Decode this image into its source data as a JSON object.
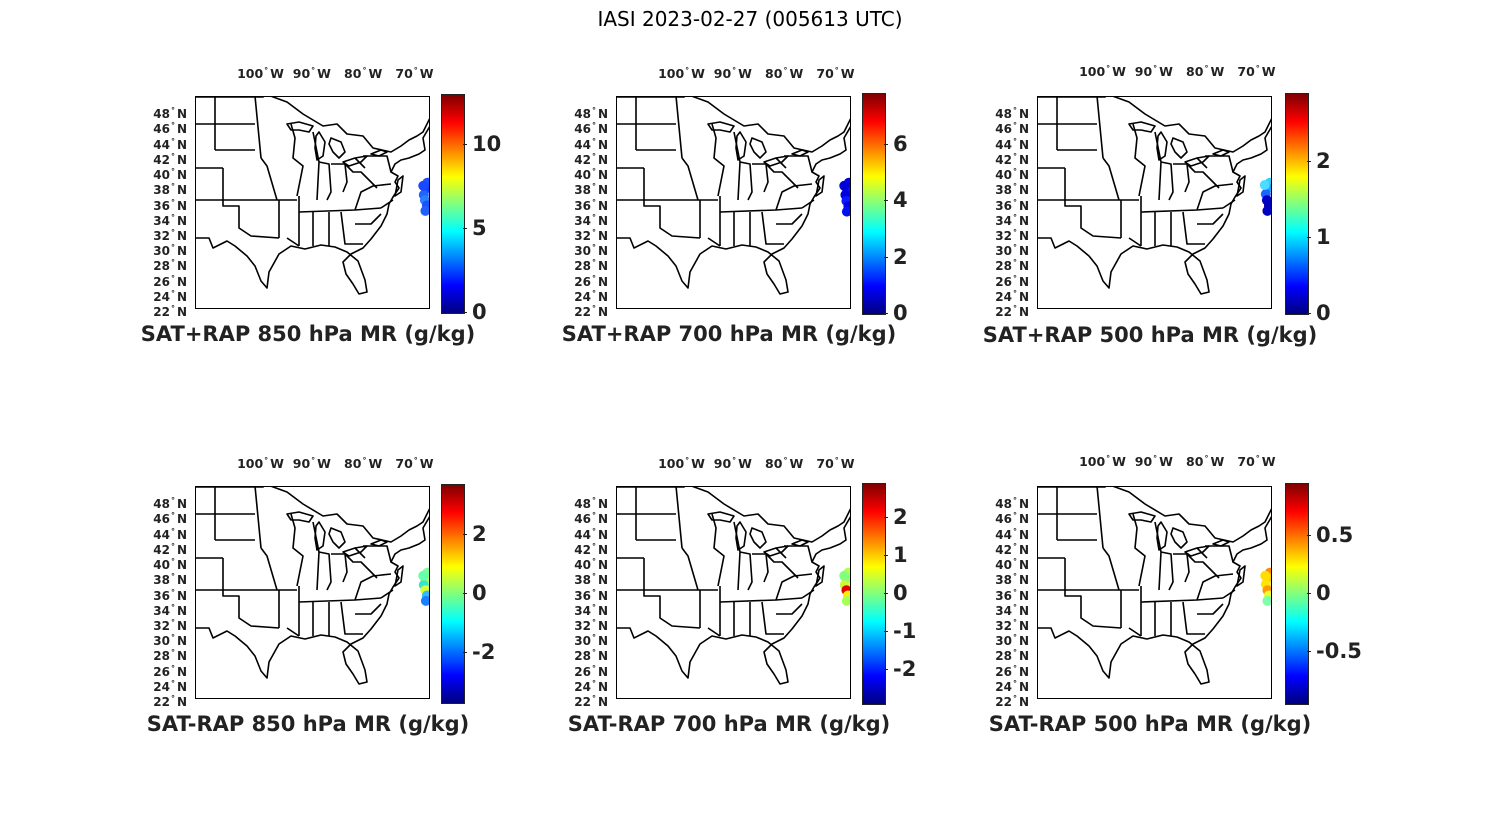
{
  "figure": {
    "title": "IASI 2023-02-27 (005613 UTC)"
  },
  "lon_ticks": [
    "100",
    "90",
    "80",
    "70"
  ],
  "lon_suffix": "W",
  "lat_ticks": [
    "48",
    "46",
    "44",
    "42",
    "40",
    "38",
    "36",
    "34",
    "32",
    "30",
    "28",
    "26",
    "24",
    "22"
  ],
  "lat_suffix": "N",
  "colormap": "jet",
  "panels": [
    {
      "title": "SAT+RAP 850 hPa MR (g/kg)",
      "colorbar": {
        "min": 0,
        "max": 13,
        "ticks": [
          0,
          5,
          10
        ],
        "tick_labels": [
          "0",
          "5",
          "10"
        ]
      },
      "obs_points": [
        {
          "lon": -66.5,
          "lat": 38.6,
          "color": "#1a52ff"
        },
        {
          "lon": -66.8,
          "lat": 37.8,
          "color": "#1a3dff"
        },
        {
          "lon": -67.2,
          "lat": 37.0,
          "color": "#1e66ff"
        },
        {
          "lon": -67.0,
          "lat": 36.3,
          "color": "#2a7fff"
        },
        {
          "lon": -66.6,
          "lat": 35.6,
          "color": "#1a52ff"
        },
        {
          "lon": -66.9,
          "lat": 34.9,
          "color": "#2060ff"
        },
        {
          "lon": -67.3,
          "lat": 38.2,
          "color": "#1848ff"
        }
      ]
    },
    {
      "title": "SAT+RAP 700 hPa MR (g/kg)",
      "colorbar": {
        "min": 0,
        "max": 7.8,
        "ticks": [
          0,
          2,
          4,
          6
        ],
        "tick_labels": [
          "0",
          "2",
          "4",
          "6"
        ]
      },
      "obs_points": [
        {
          "lon": -66.4,
          "lat": 38.6,
          "color": "#0000e6"
        },
        {
          "lon": -66.8,
          "lat": 37.8,
          "color": "#0a10ee"
        },
        {
          "lon": -67.1,
          "lat": 37.0,
          "color": "#0000dd"
        },
        {
          "lon": -66.9,
          "lat": 36.2,
          "color": "#0a1aff"
        },
        {
          "lon": -66.5,
          "lat": 35.5,
          "color": "#0000e6"
        },
        {
          "lon": -66.8,
          "lat": 34.8,
          "color": "#0010f0"
        },
        {
          "lon": -67.3,
          "lat": 38.2,
          "color": "#0000d8"
        }
      ]
    },
    {
      "title": "SAT+RAP 500 hPa MR (g/kg)",
      "colorbar": {
        "min": 0,
        "max": 2.9,
        "ticks": [
          0,
          1,
          2
        ],
        "tick_labels": [
          "0",
          "1",
          "2"
        ]
      },
      "obs_points": [
        {
          "lon": -66.4,
          "lat": 38.6,
          "color": "#33ccff"
        },
        {
          "lon": -66.8,
          "lat": 37.9,
          "color": "#1aa0ff"
        },
        {
          "lon": -67.2,
          "lat": 37.1,
          "color": "#1a66ff"
        },
        {
          "lon": -67.0,
          "lat": 36.3,
          "color": "#0000c8"
        },
        {
          "lon": -66.6,
          "lat": 35.6,
          "color": "#0000b4"
        },
        {
          "lon": -66.9,
          "lat": 34.9,
          "color": "#0000c0"
        },
        {
          "lon": -67.4,
          "lat": 38.3,
          "color": "#4ddcff"
        }
      ]
    },
    {
      "title": "SAT-RAP 850 hPa MR (g/kg)",
      "colorbar": {
        "min": -3.7,
        "max": 3.7,
        "ticks": [
          -2,
          0,
          2
        ],
        "tick_labels": [
          "-2",
          "0",
          "2"
        ]
      },
      "obs_points": [
        {
          "lon": -66.5,
          "lat": 38.6,
          "color": "#7fff9a"
        },
        {
          "lon": -66.9,
          "lat": 37.8,
          "color": "#a6ff66"
        },
        {
          "lon": -67.2,
          "lat": 37.0,
          "color": "#33e6cc"
        },
        {
          "lon": -66.9,
          "lat": 36.3,
          "color": "#d9ff33"
        },
        {
          "lon": -66.6,
          "lat": 35.6,
          "color": "#33bbff"
        },
        {
          "lon": -66.8,
          "lat": 34.9,
          "color": "#1a80ff"
        },
        {
          "lon": -67.3,
          "lat": 38.2,
          "color": "#66ffaa"
        }
      ]
    },
    {
      "title": "SAT-RAP 700 hPa MR (g/kg)",
      "colorbar": {
        "min": -2.9,
        "max": 2.9,
        "ticks": [
          -2,
          -1,
          0,
          1,
          2
        ],
        "tick_labels": [
          "-2",
          "-1",
          "0",
          "1",
          "2"
        ]
      },
      "obs_points": [
        {
          "lon": -66.5,
          "lat": 38.6,
          "color": "#b3ff4d"
        },
        {
          "lon": -66.9,
          "lat": 37.8,
          "color": "#99ff66"
        },
        {
          "lon": -67.2,
          "lat": 37.0,
          "color": "#ccff33"
        },
        {
          "lon": -66.9,
          "lat": 36.3,
          "color": "#e60000"
        },
        {
          "lon": -66.6,
          "lat": 35.6,
          "color": "#ffee00"
        },
        {
          "lon": -66.8,
          "lat": 34.9,
          "color": "#a6ff55"
        },
        {
          "lon": -67.3,
          "lat": 38.2,
          "color": "#80ff80"
        }
      ]
    },
    {
      "title": "SAT-RAP 500 hPa MR (g/kg)",
      "colorbar": {
        "min": -0.95,
        "max": 0.95,
        "ticks": [
          -0.5,
          0,
          0.5
        ],
        "tick_labels": [
          "-0.5",
          "0",
          "0.5"
        ]
      },
      "obs_points": [
        {
          "lon": -66.4,
          "lat": 38.6,
          "color": "#ff8c00"
        },
        {
          "lon": -66.8,
          "lat": 37.9,
          "color": "#ffcc00"
        },
        {
          "lon": -67.2,
          "lat": 37.1,
          "color": "#ffe600"
        },
        {
          "lon": -66.9,
          "lat": 36.3,
          "color": "#ff9900"
        },
        {
          "lon": -66.6,
          "lat": 35.6,
          "color": "#e6ff33"
        },
        {
          "lon": -66.9,
          "lat": 34.9,
          "color": "#80ffaa"
        },
        {
          "lon": -67.3,
          "lat": 38.2,
          "color": "#ffdd00"
        }
      ]
    }
  ]
}
